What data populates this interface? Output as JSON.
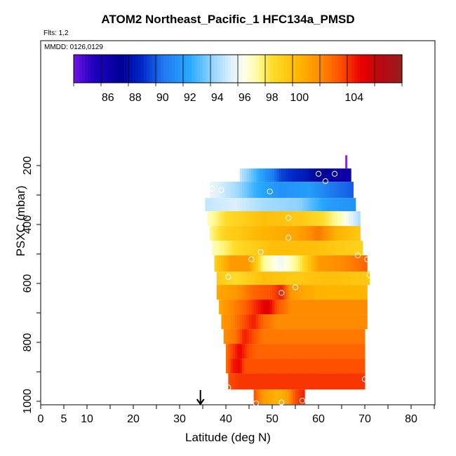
{
  "chart_data": {
    "type": "heatmap",
    "title": "ATOM2 Northeast_Pacific_1 HFC134a_PMSD",
    "flights_note": "Flts: 1,2",
    "dates_note": "MMDD: 0126,0129",
    "xlabel": "Latitude (deg N)",
    "ylabel": "PSXC (mbar)",
    "xlim": [
      0,
      85
    ],
    "ylim": [
      1000,
      200
    ],
    "x_ticks": [
      0,
      5,
      10,
      20,
      30,
      40,
      50,
      60,
      70,
      80
    ],
    "y_ticks": [
      200,
      400,
      600,
      800,
      1000
    ],
    "colorbar": {
      "range": [
        83.5,
        107.5
      ],
      "tick_values": [
        86,
        88,
        90,
        92,
        94,
        96,
        98,
        100,
        104
      ]
    },
    "arrow_marker_latitude": 34.5,
    "rows": [
      {
        "p_top": 210,
        "p_bot": 255,
        "lat_start": 43,
        "lat_end": 67,
        "stops": [
          [
            43,
            94.5
          ],
          [
            48,
            91.5
          ],
          [
            52,
            89
          ],
          [
            57,
            88
          ],
          [
            62,
            86.5
          ],
          [
            67,
            86
          ]
        ]
      },
      {
        "p_top": 255,
        "p_bot": 310,
        "lat_start": 36.5,
        "lat_end": 67.5,
        "stops": [
          [
            36.5,
            95.5
          ],
          [
            42,
            94
          ],
          [
            47,
            92
          ],
          [
            52,
            91
          ],
          [
            58,
            91.5
          ],
          [
            63,
            90
          ],
          [
            67.5,
            89.5
          ]
        ]
      },
      {
        "p_top": 310,
        "p_bot": 355,
        "lat_start": 35.5,
        "lat_end": 68,
        "stops": [
          [
            35.5,
            94.5
          ],
          [
            42,
            95
          ],
          [
            48,
            94
          ],
          [
            56,
            93.5
          ],
          [
            62,
            91.5
          ],
          [
            68,
            91
          ]
        ]
      },
      {
        "p_top": 355,
        "p_bot": 405,
        "lat_start": 36,
        "lat_end": 69,
        "stops": [
          [
            36,
            96.5
          ],
          [
            40,
            98
          ],
          [
            48,
            99.5
          ],
          [
            56,
            99
          ],
          [
            61,
            98
          ],
          [
            65,
            96.5
          ],
          [
            69,
            94
          ]
        ]
      },
      {
        "p_top": 405,
        "p_bot": 455,
        "lat_start": 36.5,
        "lat_end": 69,
        "stops": [
          [
            36.5,
            97
          ],
          [
            40,
            98.5
          ],
          [
            48,
            100
          ],
          [
            55,
            100.5
          ],
          [
            60,
            102
          ],
          [
            64,
            100
          ],
          [
            69,
            99
          ]
        ]
      },
      {
        "p_top": 455,
        "p_bot": 505,
        "lat_start": 37,
        "lat_end": 69.5,
        "stops": [
          [
            37,
            96.5
          ],
          [
            42,
            98
          ],
          [
            50,
            99.5
          ],
          [
            58,
            99.5
          ],
          [
            64,
            99
          ],
          [
            69.5,
            98.5
          ]
        ]
      },
      {
        "p_top": 505,
        "p_bot": 560,
        "lat_start": 37.5,
        "lat_end": 70.5,
        "stops": [
          [
            37.5,
            98.5
          ],
          [
            41,
            101
          ],
          [
            45,
            101
          ],
          [
            48,
            97
          ],
          [
            52,
            95.5
          ],
          [
            56,
            97.5
          ],
          [
            60,
            101
          ],
          [
            65,
            101.5
          ],
          [
            70.5,
            102.5
          ]
        ]
      },
      {
        "p_top": 560,
        "p_bot": 605,
        "lat_start": 38,
        "lat_end": 71,
        "stops": [
          [
            38,
            99
          ],
          [
            42,
            98
          ],
          [
            48,
            99.5
          ],
          [
            55,
            99
          ],
          [
            62,
            99.5
          ],
          [
            71,
            99
          ]
        ]
      },
      {
        "p_top": 605,
        "p_bot": 655,
        "lat_start": 38,
        "lat_end": 70.5,
        "stops": [
          [
            38,
            100.5
          ],
          [
            42,
            101
          ],
          [
            46,
            102.5
          ],
          [
            50,
            103
          ],
          [
            52,
            104
          ],
          [
            54,
            101
          ],
          [
            60,
            100
          ],
          [
            70.5,
            100
          ]
        ]
      },
      {
        "p_top": 655,
        "p_bot": 705,
        "lat_start": 38.5,
        "lat_end": 70.5,
        "stops": [
          [
            38.5,
            100.5
          ],
          [
            41,
            101.5
          ],
          [
            44,
            102.5
          ],
          [
            47,
            104
          ],
          [
            49,
            105
          ],
          [
            51,
            103
          ],
          [
            54,
            101.5
          ],
          [
            70.5,
            101.5
          ]
        ]
      },
      {
        "p_top": 705,
        "p_bot": 755,
        "lat_start": 39,
        "lat_end": 70.5,
        "stops": [
          [
            39,
            101
          ],
          [
            41,
            101.5
          ],
          [
            44,
            103
          ],
          [
            46,
            104
          ],
          [
            48,
            102.5
          ],
          [
            51,
            101.5
          ],
          [
            70.5,
            101.5
          ]
        ]
      },
      {
        "p_top": 755,
        "p_bot": 805,
        "lat_start": 39.5,
        "lat_end": 70,
        "stops": [
          [
            39.5,
            101.5
          ],
          [
            42,
            102
          ],
          [
            44,
            104
          ],
          [
            46,
            103
          ],
          [
            48,
            102
          ],
          [
            70,
            102
          ]
        ]
      },
      {
        "p_top": 805,
        "p_bot": 855,
        "lat_start": 40,
        "lat_end": 70,
        "stops": [
          [
            40,
            102
          ],
          [
            41,
            103
          ],
          [
            43,
            104.5
          ],
          [
            45,
            103
          ],
          [
            47,
            102.5
          ],
          [
            70,
            102.5
          ]
        ]
      },
      {
        "p_top": 855,
        "p_bot": 905,
        "lat_start": 40,
        "lat_end": 70,
        "stops": [
          [
            40,
            102
          ],
          [
            41.5,
            104
          ],
          [
            43,
            104.5
          ],
          [
            44,
            103
          ],
          [
            70,
            103
          ]
        ]
      },
      {
        "p_top": 905,
        "p_bot": 960,
        "lat_start": 40.5,
        "lat_end": 70,
        "stops": [
          [
            40.5,
            103
          ],
          [
            43,
            103.5
          ],
          [
            56,
            103.5
          ],
          [
            70,
            103.5
          ]
        ]
      },
      {
        "p_top": 960,
        "p_bot": 1010,
        "lat_start": 46,
        "lat_end": 57,
        "stops": [
          [
            46,
            103
          ],
          [
            48,
            101
          ],
          [
            51,
            100
          ],
          [
            53,
            100.5
          ],
          [
            55,
            103
          ],
          [
            57,
            104
          ]
        ]
      }
    ],
    "sample_points": [
      [
        60,
        228
      ],
      [
        63.5,
        228
      ],
      [
        61.5,
        253
      ],
      [
        37,
        278
      ],
      [
        39,
        283
      ],
      [
        49.5,
        288
      ],
      [
        53.5,
        378
      ],
      [
        53.5,
        445
      ],
      [
        47.5,
        493
      ],
      [
        45.5,
        518
      ],
      [
        68.5,
        505
      ],
      [
        70.5,
        518
      ],
      [
        51.5,
        550
      ],
      [
        40.5,
        578
      ],
      [
        71,
        572
      ],
      [
        55,
        613
      ],
      [
        52,
        632
      ],
      [
        70,
        925
      ],
      [
        40.5,
        953
      ],
      [
        46.5,
        1007
      ],
      [
        52,
        1004
      ],
      [
        56.5,
        998
      ]
    ]
  }
}
